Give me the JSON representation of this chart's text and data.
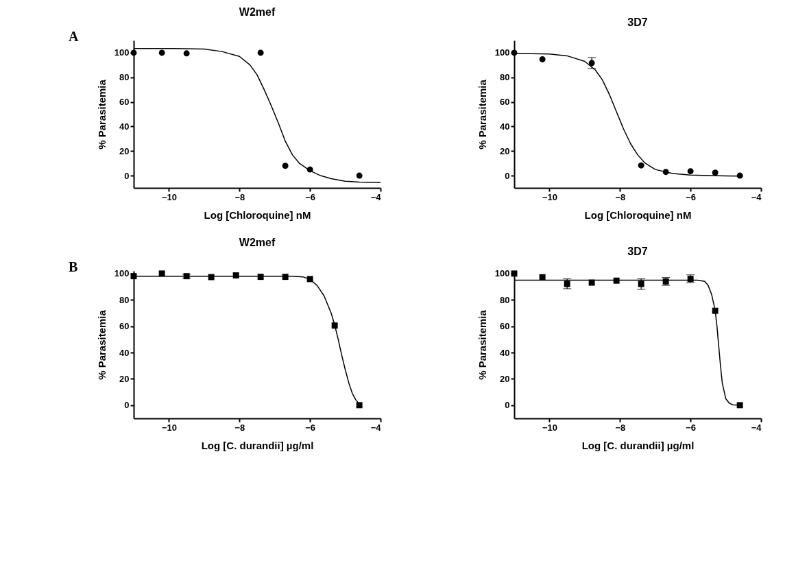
{
  "chart_data": [
    {
      "type": "scatter",
      "title": "W2mef",
      "xlabel": "Log [Chloroquine] nM",
      "ylabel": "% Parasitemia",
      "annotations": [
        "A"
      ],
      "xlim": [
        -11,
        -4
      ],
      "xticks": [
        -10,
        -8,
        -6,
        -4
      ],
      "ylim": [
        -10,
        110
      ],
      "yticks": [
        0,
        20,
        40,
        60,
        80,
        100
      ],
      "marker": "circle",
      "series": [
        {
          "color": "#000000",
          "x": [
            -11,
            -10.2,
            -9.5,
            -7.4,
            -6.7,
            -6.0,
            -4.6
          ],
          "values": [
            100,
            100,
            99.5,
            100,
            8,
            5,
            0
          ]
        },
        {
          "type": "line",
          "color": "#000000",
          "line_style": "solid",
          "marker": "none",
          "x": [
            -11,
            -10,
            -9,
            -8.5,
            -8,
            -7.7,
            -7.5,
            -7.3,
            -7.1,
            -6.9,
            -6.7,
            -6.5,
            -6.3,
            -6.0,
            -5.7,
            -5.4,
            -5.0,
            -4.6,
            -4.0
          ],
          "values": [
            103.5,
            103.5,
            103,
            101,
            97,
            90,
            82,
            70,
            57,
            43,
            28,
            17,
            10,
            4,
            0,
            -2.5,
            -4.5,
            -5.2,
            -5.5
          ]
        }
      ]
    },
    {
      "type": "scatter",
      "title": "3D7",
      "xlabel": "Log [Chloroquine] nM",
      "ylabel": "% Parasitemia",
      "xlim": [
        -11,
        -4
      ],
      "xticks": [
        -10,
        -8,
        -6,
        -4
      ],
      "ylim": [
        -10,
        110
      ],
      "yticks": [
        0,
        20,
        40,
        60,
        80,
        100
      ],
      "marker": "circle",
      "series": [
        {
          "color": "#000000",
          "x": [
            -11,
            -10.2,
            -8.8,
            -7.4,
            -6.7,
            -6.0,
            -5.3,
            -4.6
          ],
          "values": [
            100,
            94.7,
            91.7,
            8.3,
            3,
            3.6,
            2.4,
            0
          ],
          "errors": [
            null,
            null,
            [
              87.2,
              96.1
            ],
            null,
            null,
            null,
            null,
            null
          ]
        },
        {
          "type": "line",
          "color": "#000000",
          "line_style": "solid",
          "marker": "none",
          "x": [
            -11,
            -10,
            -9.5,
            -9,
            -8.7,
            -8.5,
            -8.3,
            -8.1,
            -7.9,
            -7.7,
            -7.5,
            -7.3,
            -7.0,
            -6.5,
            -6.0,
            -5.0,
            -4.6
          ],
          "values": [
            99.5,
            99,
            97.5,
            93,
            86,
            78,
            66,
            52,
            38,
            26,
            17,
            10.5,
            5,
            1.7,
            0.5,
            -0.3,
            -0.4
          ]
        }
      ]
    },
    {
      "type": "scatter",
      "title": "W2mef",
      "xlabel": "Log [C. durandii] µg/ml",
      "ylabel": "% Parasitemia",
      "annotations": [
        "B"
      ],
      "xlim": [
        -11,
        -4
      ],
      "xticks": [
        -10,
        -8,
        -6,
        -4
      ],
      "ylim": [
        -10,
        102
      ],
      "yticks": [
        0,
        20,
        40,
        60,
        80,
        100
      ],
      "marker": "square",
      "series": [
        {
          "color": "#000000",
          "x": [
            -11,
            -10.2,
            -9.5,
            -8.8,
            -8.1,
            -7.4,
            -6.7,
            -6.0,
            -5.3,
            -4.6
          ],
          "values": [
            98,
            100,
            98,
            97.3,
            98.6,
            97.5,
            97.5,
            95.8,
            60.5,
            0
          ],
          "errors": [
            null,
            null,
            [
              96.5,
              99.5
            ],
            null,
            null,
            null,
            null,
            null,
            null,
            null
          ]
        },
        {
          "type": "line",
          "color": "#000000",
          "line_style": "solid",
          "marker": "none",
          "x": [
            -11,
            -6.5,
            -6.2,
            -6.0,
            -5.8,
            -5.6,
            -5.4,
            -5.3,
            -5.2,
            -5.1,
            -5.0,
            -4.9,
            -4.8,
            -4.7,
            -4.6
          ],
          "values": [
            98,
            98,
            97.5,
            95.5,
            91,
            83,
            70,
            61,
            50,
            38,
            27,
            17,
            9,
            4,
            1
          ]
        }
      ]
    },
    {
      "type": "scatter",
      "title": "3D7",
      "xlabel": "Log [C. durandii] µg/ml",
      "ylabel": "% Parasitemia",
      "xlim": [
        -11,
        -4
      ],
      "xticks": [
        -10,
        -8,
        -6,
        -4
      ],
      "ylim": [
        -10,
        102
      ],
      "yticks": [
        0,
        20,
        40,
        60,
        80,
        100
      ],
      "marker": "square",
      "series": [
        {
          "color": "#000000",
          "x": [
            -11,
            -10.2,
            -9.5,
            -8.8,
            -8.1,
            -7.4,
            -6.7,
            -6.0,
            -5.3,
            -4.6
          ],
          "values": [
            100,
            97.2,
            92.1,
            93.1,
            94.6,
            92.1,
            94,
            95.9,
            71.7,
            0
          ],
          "errors": [
            null,
            null,
            [
              88.5,
              96
            ],
            null,
            null,
            [
              88,
              96
            ],
            [
              91,
              97
            ],
            [
              93,
              99
            ],
            null,
            null
          ]
        },
        {
          "type": "line",
          "color": "#000000",
          "line_style": "solid",
          "marker": "none",
          "x": [
            -11,
            -5.8,
            -5.6,
            -5.5,
            -5.4,
            -5.3,
            -5.25,
            -5.2,
            -5.15,
            -5.1,
            -5.0,
            -4.9,
            -4.8,
            -4.6
          ],
          "values": [
            95,
            95,
            94,
            91,
            84,
            72,
            60,
            45,
            30,
            17,
            5,
            1.5,
            0.3,
            0
          ]
        }
      ]
    }
  ]
}
